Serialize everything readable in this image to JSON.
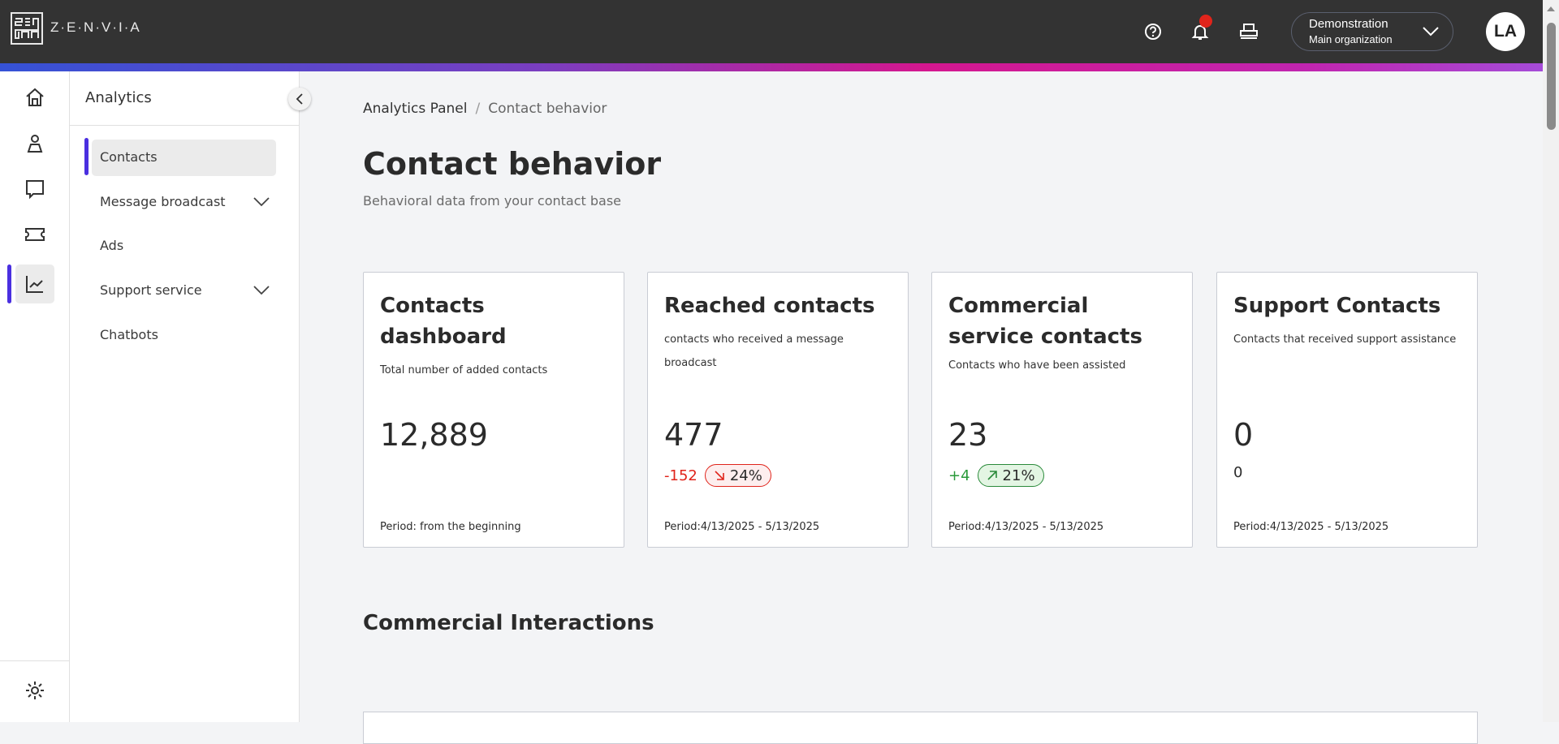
{
  "header": {
    "brand": "Z·E·N·V·I·A",
    "org_name": "Demonstration",
    "org_sub": "Main organization",
    "avatar_initials": "LA",
    "icons": [
      "help-icon",
      "bell-icon",
      "printer-icon",
      "chevron-down-icon"
    ],
    "notification_dot_color": "#e0241b"
  },
  "rail": {
    "icons": [
      "home-icon",
      "person-icon",
      "chat-icon",
      "ticket-icon",
      "chart-icon",
      "gear-icon"
    ],
    "active": "chart-icon",
    "accent": "#4a2fe0"
  },
  "sidebar": {
    "title": "Analytics",
    "items": [
      {
        "label": "Contacts",
        "active": true
      },
      {
        "label": "Message broadcast",
        "expandable": true
      },
      {
        "label": "Ads"
      },
      {
        "label": "Support service",
        "expandable": true
      },
      {
        "label": "Chatbots"
      }
    ]
  },
  "breadcrumb": {
    "root": "Analytics Panel",
    "separator": "/",
    "current": "Contact behavior"
  },
  "page": {
    "title": "Contact behavior",
    "subtitle": "Behavioral data from your contact base"
  },
  "cards": [
    {
      "title": "Contacts dashboard",
      "desc": "Total number of added contacts",
      "value": "12,889",
      "period": "Period: from the beginning"
    },
    {
      "title": "Reached contacts",
      "desc": "contacts who received a message broadcast",
      "value": "477",
      "delta": "-152",
      "pct": "24%",
      "trend": "down",
      "delta_color": "#e0241b",
      "period": "Period:4/13/2025 - 5/13/2025"
    },
    {
      "title": "Commercial service contacts",
      "desc": "Contacts who have been assisted",
      "value": "23",
      "delta": "+4",
      "pct": "21%",
      "trend": "up",
      "delta_color": "#2a9a3a",
      "period": "Period:4/13/2025 - 5/13/2025"
    },
    {
      "title": "Support Contacts",
      "desc": "Contacts that received support assistance",
      "value": "0",
      "delta": "0",
      "period": "Period:4/13/2025 - 5/13/2025"
    }
  ],
  "section": {
    "title": "Commercial Interactions"
  }
}
